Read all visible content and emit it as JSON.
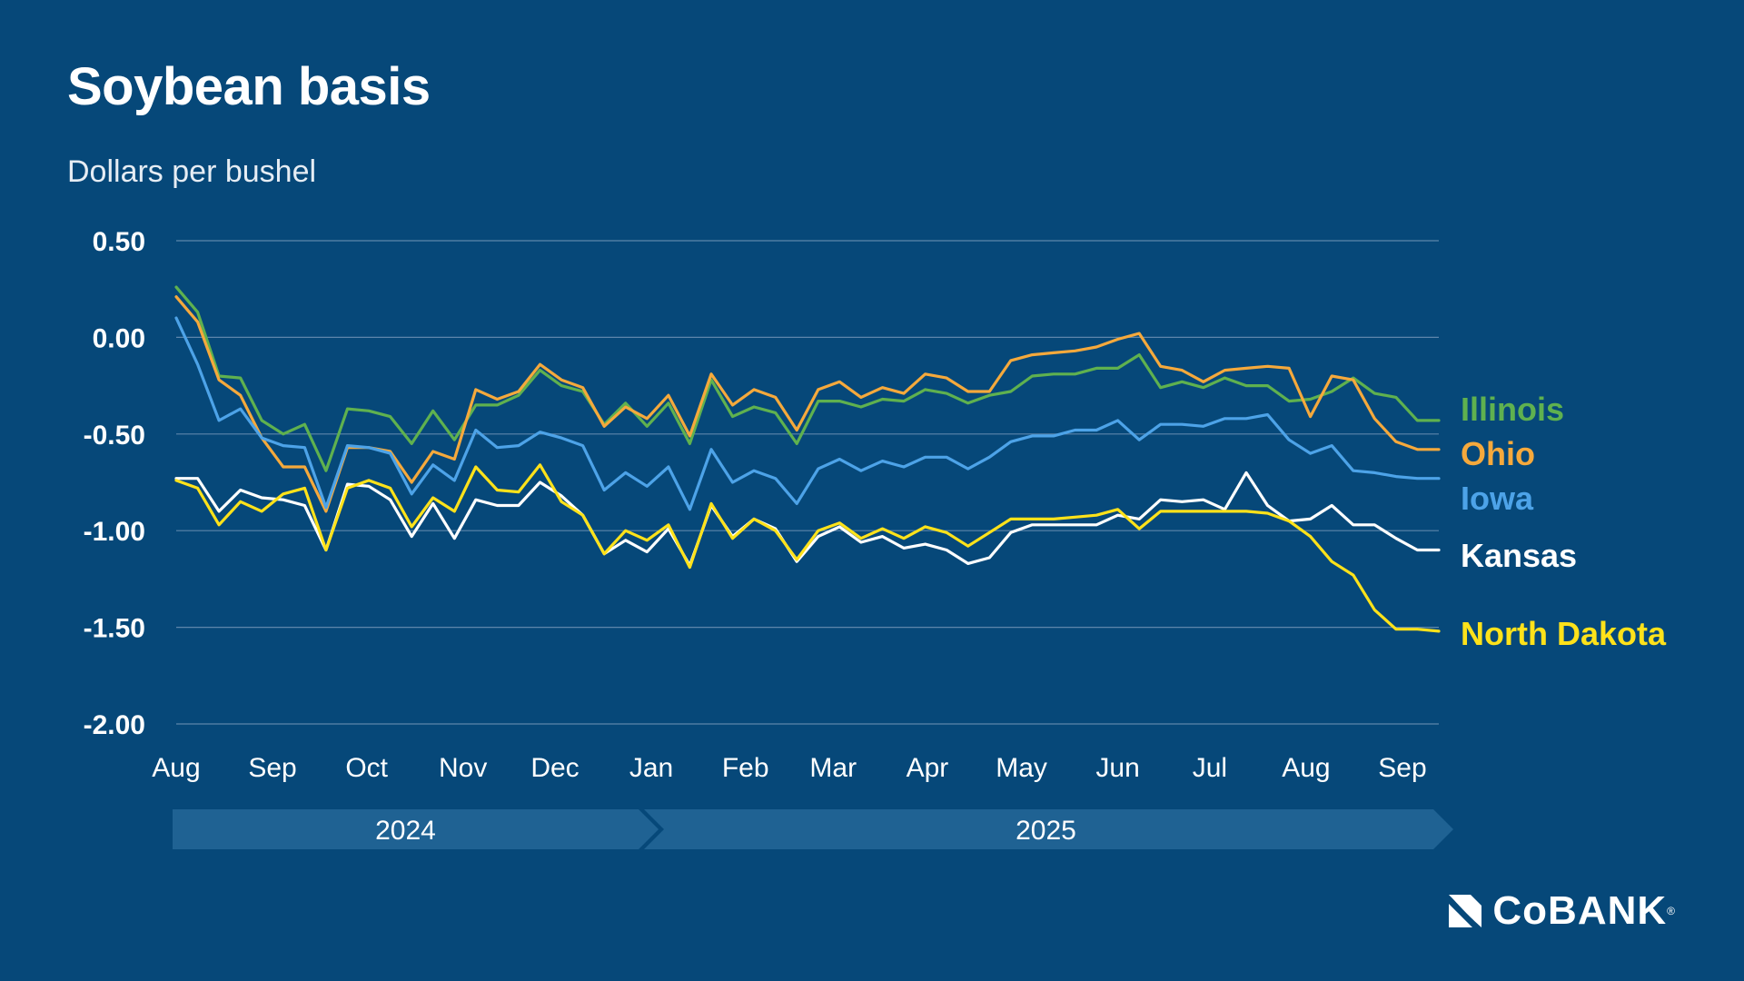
{
  "title": "Soybean basis",
  "subtitle": "Dollars per bushel",
  "brand": {
    "name": "CoBANK",
    "reg": "®"
  },
  "timeline": [
    {
      "label": "2024"
    },
    {
      "label": "2025"
    }
  ],
  "chart_data": {
    "type": "line",
    "title": "Soybean basis",
    "ylabel": "Dollars per bushel",
    "ylim": [
      -2.0,
      0.5
    ],
    "yticks": [
      0.5,
      0.0,
      -0.5,
      -1.0,
      -1.5,
      -2.0
    ],
    "ytick_labels": [
      "0.50",
      "0.00",
      "-0.50",
      "-1.00",
      "-1.50",
      "-2.00"
    ],
    "xlim": [
      0,
      59
    ],
    "xticks": [
      {
        "label": "Aug",
        "x": 0
      },
      {
        "label": "Sep",
        "x": 4.5
      },
      {
        "label": "Oct",
        "x": 8.9
      },
      {
        "label": "Nov",
        "x": 13.4
      },
      {
        "label": "Dec",
        "x": 17.7
      },
      {
        "label": "Jan",
        "x": 22.2
      },
      {
        "label": "Feb",
        "x": 26.6
      },
      {
        "label": "Mar",
        "x": 30.7
      },
      {
        "label": "Apr",
        "x": 35.1
      },
      {
        "label": "May",
        "x": 39.5
      },
      {
        "label": "Jun",
        "x": 44.0
      },
      {
        "label": "Jul",
        "x": 48.3
      },
      {
        "label": "Aug",
        "x": 52.8
      },
      {
        "label": "Sep",
        "x": 57.3
      }
    ],
    "grid": true,
    "legend": "right end of lines",
    "series": [
      {
        "name": "Illinois",
        "color": "#5fb14f",
        "values": [
          0.26,
          0.13,
          -0.2,
          -0.21,
          -0.43,
          -0.5,
          -0.45,
          -0.69,
          -0.37,
          -0.38,
          -0.41,
          -0.55,
          -0.38,
          -0.53,
          -0.35,
          -0.35,
          -0.3,
          -0.17,
          -0.25,
          -0.28,
          -0.45,
          -0.34,
          -0.46,
          -0.34,
          -0.55,
          -0.22,
          -0.41,
          -0.36,
          -0.39,
          -0.55,
          -0.33,
          -0.33,
          -0.36,
          -0.32,
          -0.33,
          -0.27,
          -0.29,
          -0.34,
          -0.3,
          -0.28,
          -0.2,
          -0.19,
          -0.19,
          -0.16,
          -0.16,
          -0.09,
          -0.26,
          -0.23,
          -0.26,
          -0.21,
          -0.25,
          -0.25,
          -0.33,
          -0.32,
          -0.28,
          -0.21,
          -0.29,
          -0.31,
          -0.43,
          -0.43
        ]
      },
      {
        "name": "Ohio",
        "color": "#f5a93c",
        "values": [
          0.21,
          0.08,
          -0.22,
          -0.3,
          -0.52,
          -0.67,
          -0.67,
          -0.9,
          -0.57,
          -0.57,
          -0.59,
          -0.75,
          -0.59,
          -0.63,
          -0.27,
          -0.32,
          -0.28,
          -0.14,
          -0.22,
          -0.26,
          -0.46,
          -0.36,
          -0.42,
          -0.3,
          -0.51,
          -0.19,
          -0.35,
          -0.27,
          -0.31,
          -0.48,
          -0.27,
          -0.23,
          -0.31,
          -0.26,
          -0.29,
          -0.19,
          -0.21,
          -0.28,
          -0.28,
          -0.12,
          -0.09,
          -0.08,
          -0.07,
          -0.05,
          -0.01,
          0.02,
          -0.15,
          -0.17,
          -0.23,
          -0.17,
          -0.16,
          -0.15,
          -0.16,
          -0.41,
          -0.2,
          -0.22,
          -0.42,
          -0.54,
          -0.58,
          -0.58
        ]
      },
      {
        "name": "Iowa",
        "color": "#4da3e8",
        "values": [
          0.1,
          -0.14,
          -0.43,
          -0.37,
          -0.52,
          -0.56,
          -0.57,
          -0.88,
          -0.56,
          -0.57,
          -0.6,
          -0.81,
          -0.66,
          -0.74,
          -0.48,
          -0.57,
          -0.56,
          -0.49,
          -0.52,
          -0.56,
          -0.79,
          -0.7,
          -0.77,
          -0.67,
          -0.89,
          -0.58,
          -0.75,
          -0.69,
          -0.73,
          -0.86,
          -0.68,
          -0.63,
          -0.69,
          -0.64,
          -0.67,
          -0.62,
          -0.62,
          -0.68,
          -0.62,
          -0.54,
          -0.51,
          -0.51,
          -0.48,
          -0.48,
          -0.43,
          -0.53,
          -0.45,
          -0.45,
          -0.46,
          -0.42,
          -0.42,
          -0.4,
          -0.53,
          -0.6,
          -0.56,
          -0.69,
          -0.7,
          -0.72,
          -0.73,
          -0.73
        ]
      },
      {
        "name": "Kansas",
        "color": "#ffffff",
        "values": [
          -0.73,
          -0.73,
          -0.9,
          -0.79,
          -0.83,
          -0.84,
          -0.87,
          -1.1,
          -0.76,
          -0.77,
          -0.84,
          -1.03,
          -0.86,
          -1.04,
          -0.84,
          -0.87,
          -0.87,
          -0.75,
          -0.82,
          -0.92,
          -1.12,
          -1.05,
          -1.11,
          -0.99,
          -1.18,
          -0.87,
          -1.03,
          -0.94,
          -0.99,
          -1.16,
          -1.03,
          -0.98,
          -1.06,
          -1.03,
          -1.09,
          -1.07,
          -1.1,
          -1.17,
          -1.14,
          -1.01,
          -0.97,
          -0.97,
          -0.97,
          -0.97,
          -0.92,
          -0.94,
          -0.84,
          -0.85,
          -0.84,
          -0.89,
          -0.7,
          -0.87,
          -0.95,
          -0.94,
          -0.87,
          -0.97,
          -0.97,
          -1.04,
          -1.1,
          -1.1
        ]
      },
      {
        "name": "North Dakota",
        "color": "#ffe21a",
        "values": [
          -0.74,
          -0.78,
          -0.97,
          -0.85,
          -0.9,
          -0.81,
          -0.78,
          -1.1,
          -0.78,
          -0.74,
          -0.78,
          -0.98,
          -0.83,
          -0.9,
          -0.67,
          -0.79,
          -0.8,
          -0.66,
          -0.85,
          -0.92,
          -1.12,
          -1.0,
          -1.05,
          -0.97,
          -1.19,
          -0.86,
          -1.04,
          -0.94,
          -1.0,
          -1.15,
          -1.0,
          -0.96,
          -1.04,
          -0.99,
          -1.04,
          -0.98,
          -1.01,
          -1.08,
          -1.01,
          -0.94,
          -0.94,
          -0.94,
          -0.93,
          -0.92,
          -0.89,
          -0.99,
          -0.9,
          -0.9,
          -0.9,
          -0.9,
          -0.9,
          -0.91,
          -0.95,
          -1.03,
          -1.16,
          -1.23,
          -1.41,
          -1.51,
          -1.51,
          -1.52
        ]
      }
    ]
  }
}
